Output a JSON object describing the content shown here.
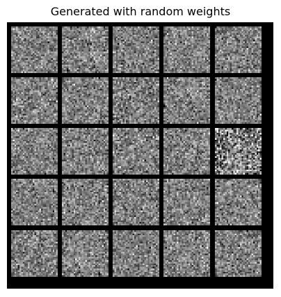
{
  "figure": {
    "title": "Generated with random weights"
  },
  "grid": {
    "rows": 5,
    "cols": 5,
    "tile_resolution": 28,
    "border_color": "#000000",
    "noise_tiles": {
      "mean_gray": 0.5,
      "stddev": [
        [
          0.14,
          0.15,
          0.15,
          0.14,
          0.15
        ],
        [
          0.15,
          0.14,
          0.16,
          0.15,
          0.14
        ],
        [
          0.14,
          0.15,
          0.15,
          0.15,
          0.26
        ],
        [
          0.14,
          0.15,
          0.15,
          0.14,
          0.15
        ],
        [
          0.15,
          0.15,
          0.14,
          0.15,
          0.15
        ]
      ]
    }
  }
}
